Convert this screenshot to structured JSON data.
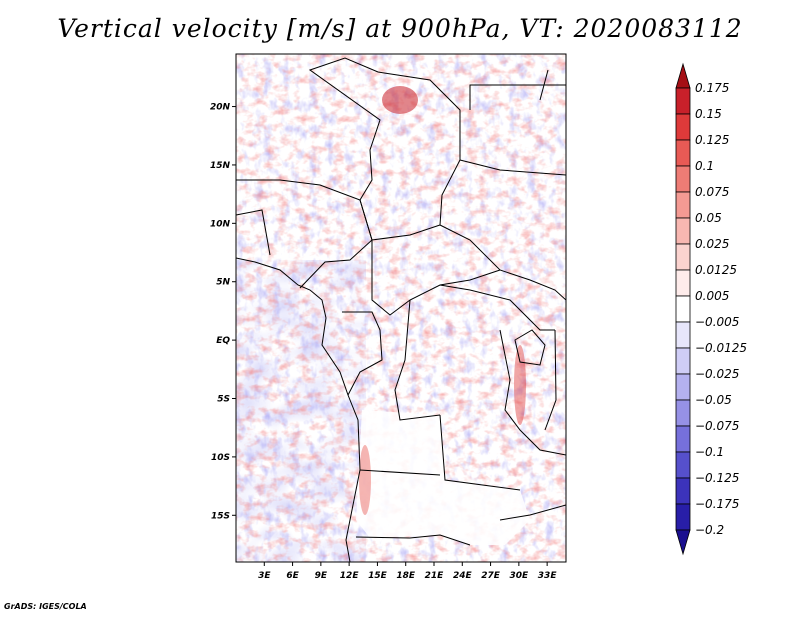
{
  "page": {
    "credit": "GrADS: IGES/COLA"
  },
  "chart_data": {
    "type": "heatmap",
    "title": "Vertical velocity [m/s] at 900hPa, VT: 2020083112",
    "variable": "Vertical velocity",
    "units": "m/s",
    "level": "900hPa",
    "valid_time": "2020083112",
    "x_range": [
      0,
      35
    ],
    "y_range": [
      -19,
      24.5
    ],
    "x_ticks": [
      {
        "value": 3,
        "label": "3E"
      },
      {
        "value": 6,
        "label": "6E"
      },
      {
        "value": 9,
        "label": "9E"
      },
      {
        "value": 12,
        "label": "12E"
      },
      {
        "value": 15,
        "label": "15E"
      },
      {
        "value": 18,
        "label": "18E"
      },
      {
        "value": 21,
        "label": "21E"
      },
      {
        "value": 24,
        "label": "24E"
      },
      {
        "value": 27,
        "label": "27E"
      },
      {
        "value": 30,
        "label": "30E"
      },
      {
        "value": 33,
        "label": "33E"
      }
    ],
    "y_ticks": [
      {
        "value": 20,
        "label": "20N"
      },
      {
        "value": 15,
        "label": "15N"
      },
      {
        "value": 10,
        "label": "10N"
      },
      {
        "value": 5,
        "label": "5N"
      },
      {
        "value": 0,
        "label": "EQ"
      },
      {
        "value": -5,
        "label": "5S"
      },
      {
        "value": -10,
        "label": "10S"
      },
      {
        "value": -15,
        "label": "15S"
      }
    ],
    "colorbar": {
      "labels": [
        "0.175",
        "0.15",
        "0.125",
        "0.1",
        "0.075",
        "0.05",
        "0.025",
        "0.0125",
        "0.005",
        "−0.005",
        "−0.0125",
        "−0.025",
        "−0.05",
        "−0.075",
        "−0.1",
        "−0.125",
        "−0.175",
        "−0.2"
      ],
      "colors": [
        "#a50f15",
        "#c8202a",
        "#de3a3a",
        "#e85a55",
        "#ee7c75",
        "#f49a93",
        "#f8b7b1",
        "#fbd3cf",
        "#feeceb",
        "#ffffff",
        "#e7e6fb",
        "#cfcdf6",
        "#b4b1ef",
        "#9691e6",
        "#7670db",
        "#5650cc",
        "#3c33bb",
        "#281ea8",
        "#1a0f8f"
      ]
    }
  }
}
